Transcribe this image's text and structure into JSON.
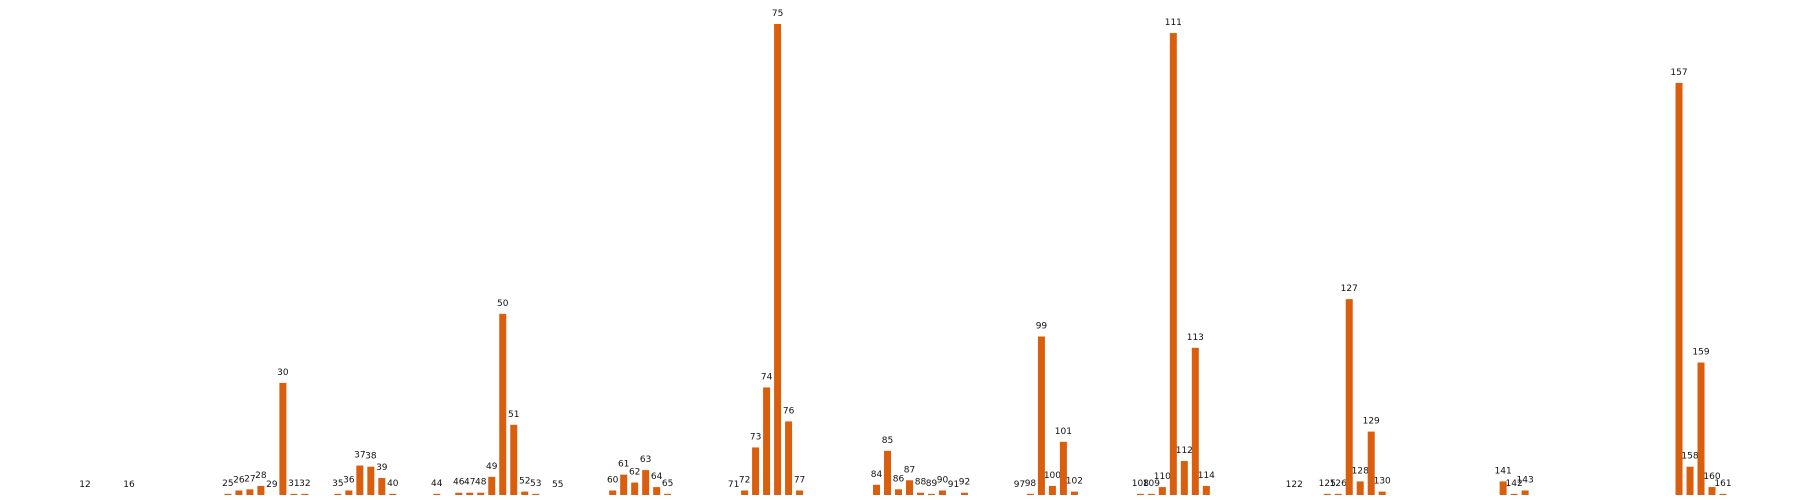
{
  "chart_data": {
    "type": "bar",
    "color": "#d95f0e",
    "x": [
      12,
      16,
      25,
      26,
      27,
      28,
      29,
      30,
      31,
      32,
      35,
      36,
      37,
      38,
      39,
      40,
      44,
      46,
      47,
      48,
      49,
      50,
      51,
      52,
      53,
      55,
      60,
      61,
      62,
      63,
      64,
      65,
      71,
      72,
      73,
      74,
      75,
      76,
      77,
      84,
      85,
      86,
      87,
      88,
      89,
      90,
      91,
      92,
      97,
      98,
      99,
      100,
      101,
      102,
      108,
      109,
      110,
      111,
      112,
      113,
      114,
      122,
      125,
      126,
      127,
      128,
      129,
      130,
      141,
      142,
      143,
      157,
      158,
      159,
      160,
      161
    ],
    "values": [
      0,
      0,
      1,
      4,
      5,
      8,
      0,
      99,
      1,
      1,
      1,
      4,
      26,
      25,
      15,
      1,
      1,
      2,
      2,
      2,
      16,
      160,
      62,
      3,
      1,
      0,
      4,
      18,
      11,
      22,
      7,
      1,
      0,
      4,
      42,
      95,
      416,
      65,
      4,
      9,
      39,
      5,
      13,
      2,
      1,
      4,
      0,
      2,
      0,
      1,
      140,
      8,
      47,
      3,
      1,
      1,
      7,
      408,
      30,
      130,
      8,
      0,
      1,
      1,
      173,
      12,
      56,
      3,
      12,
      1,
      4,
      364,
      25,
      117,
      7,
      1
    ]
  }
}
